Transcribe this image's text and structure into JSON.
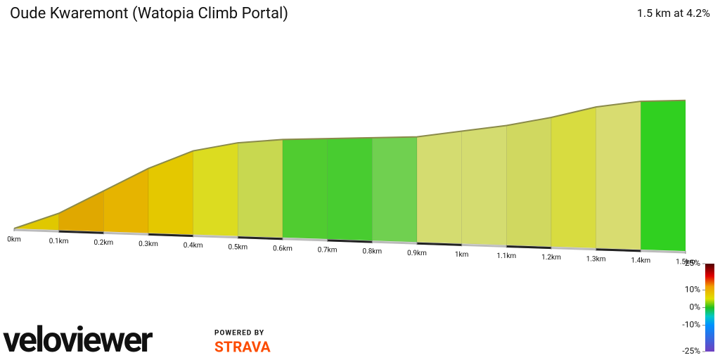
{
  "chart_data": {
    "type": "profile",
    "title": "Oude Kwaremont (Watopia Climb Portal)",
    "subtitle": "1.5 km at 4.2%",
    "x": [
      0,
      0.1,
      0.2,
      0.3,
      0.4,
      0.5,
      0.6,
      0.7,
      0.8,
      0.9,
      1.0,
      1.1,
      1.2,
      1.3,
      1.4,
      1.5
    ],
    "series": [
      {
        "values": [
          0,
          7,
          17,
          27,
          35,
          39,
          41,
          42,
          43,
          44,
          47,
          50,
          54,
          59,
          62,
          63
        ],
        "colors": [
          "#e0c800",
          "#e0a800",
          "#e6b400",
          "#e4c800",
          "#dcdc20",
          "#c8d850",
          "#50cc30",
          "#48cc30",
          "#70d050",
          "#d4dc70",
          "#d4dc70",
          "#d0d860",
          "#d8dc40",
          "#d8dc70",
          "#30d020"
        ]
      }
    ],
    "xlim": [
      0,
      1.5
    ],
    "ylim": [
      0,
      70
    ],
    "xticks": [
      {
        "value": 0,
        "label": "0km"
      },
      {
        "value": 0.1,
        "label": "0.1km"
      },
      {
        "value": 0.2,
        "label": "0.2km"
      },
      {
        "value": 0.3,
        "label": "0.3km"
      },
      {
        "value": 0.4,
        "label": "0.4km"
      },
      {
        "value": 0.5,
        "label": "0.5km"
      },
      {
        "value": 0.6,
        "label": "0.6km"
      },
      {
        "value": 0.7,
        "label": "0.7km"
      },
      {
        "value": 0.8,
        "label": "0.8km"
      },
      {
        "value": 0.9,
        "label": "0.9km"
      },
      {
        "value": 1,
        "label": "1km"
      },
      {
        "value": 1.1,
        "label": "1.1km"
      },
      {
        "value": 1.2,
        "label": "1.2km"
      },
      {
        "value": 1.3,
        "label": "1.3km"
      },
      {
        "value": 1.4,
        "label": "1.4km"
      },
      {
        "value": 1.5,
        "label": "1.5km"
      }
    ],
    "color_scale": {
      "lim": [
        -25,
        25
      ],
      "ticks": [
        {
          "value": 25,
          "label": "25%"
        },
        {
          "value": 10,
          "label": "10%"
        },
        {
          "value": 0,
          "label": "0%"
        },
        {
          "value": -10,
          "label": "-10%"
        },
        {
          "value": -25,
          "label": "-25%"
        }
      ],
      "stops": [
        {
          "value": 25,
          "color": "#500000"
        },
        {
          "value": 18,
          "color": "#e00000"
        },
        {
          "value": 12,
          "color": "#f0a000"
        },
        {
          "value": 5,
          "color": "#e0e000"
        },
        {
          "value": 0,
          "color": "#20c020"
        },
        {
          "value": -5,
          "color": "#00c8c8"
        },
        {
          "value": -10,
          "color": "#0090ff"
        },
        {
          "value": -25,
          "color": "#7040c0"
        }
      ]
    }
  },
  "branding": {
    "logo": "veloviewer",
    "powered_by": "POWERED BY",
    "partner": "STRAVA"
  }
}
